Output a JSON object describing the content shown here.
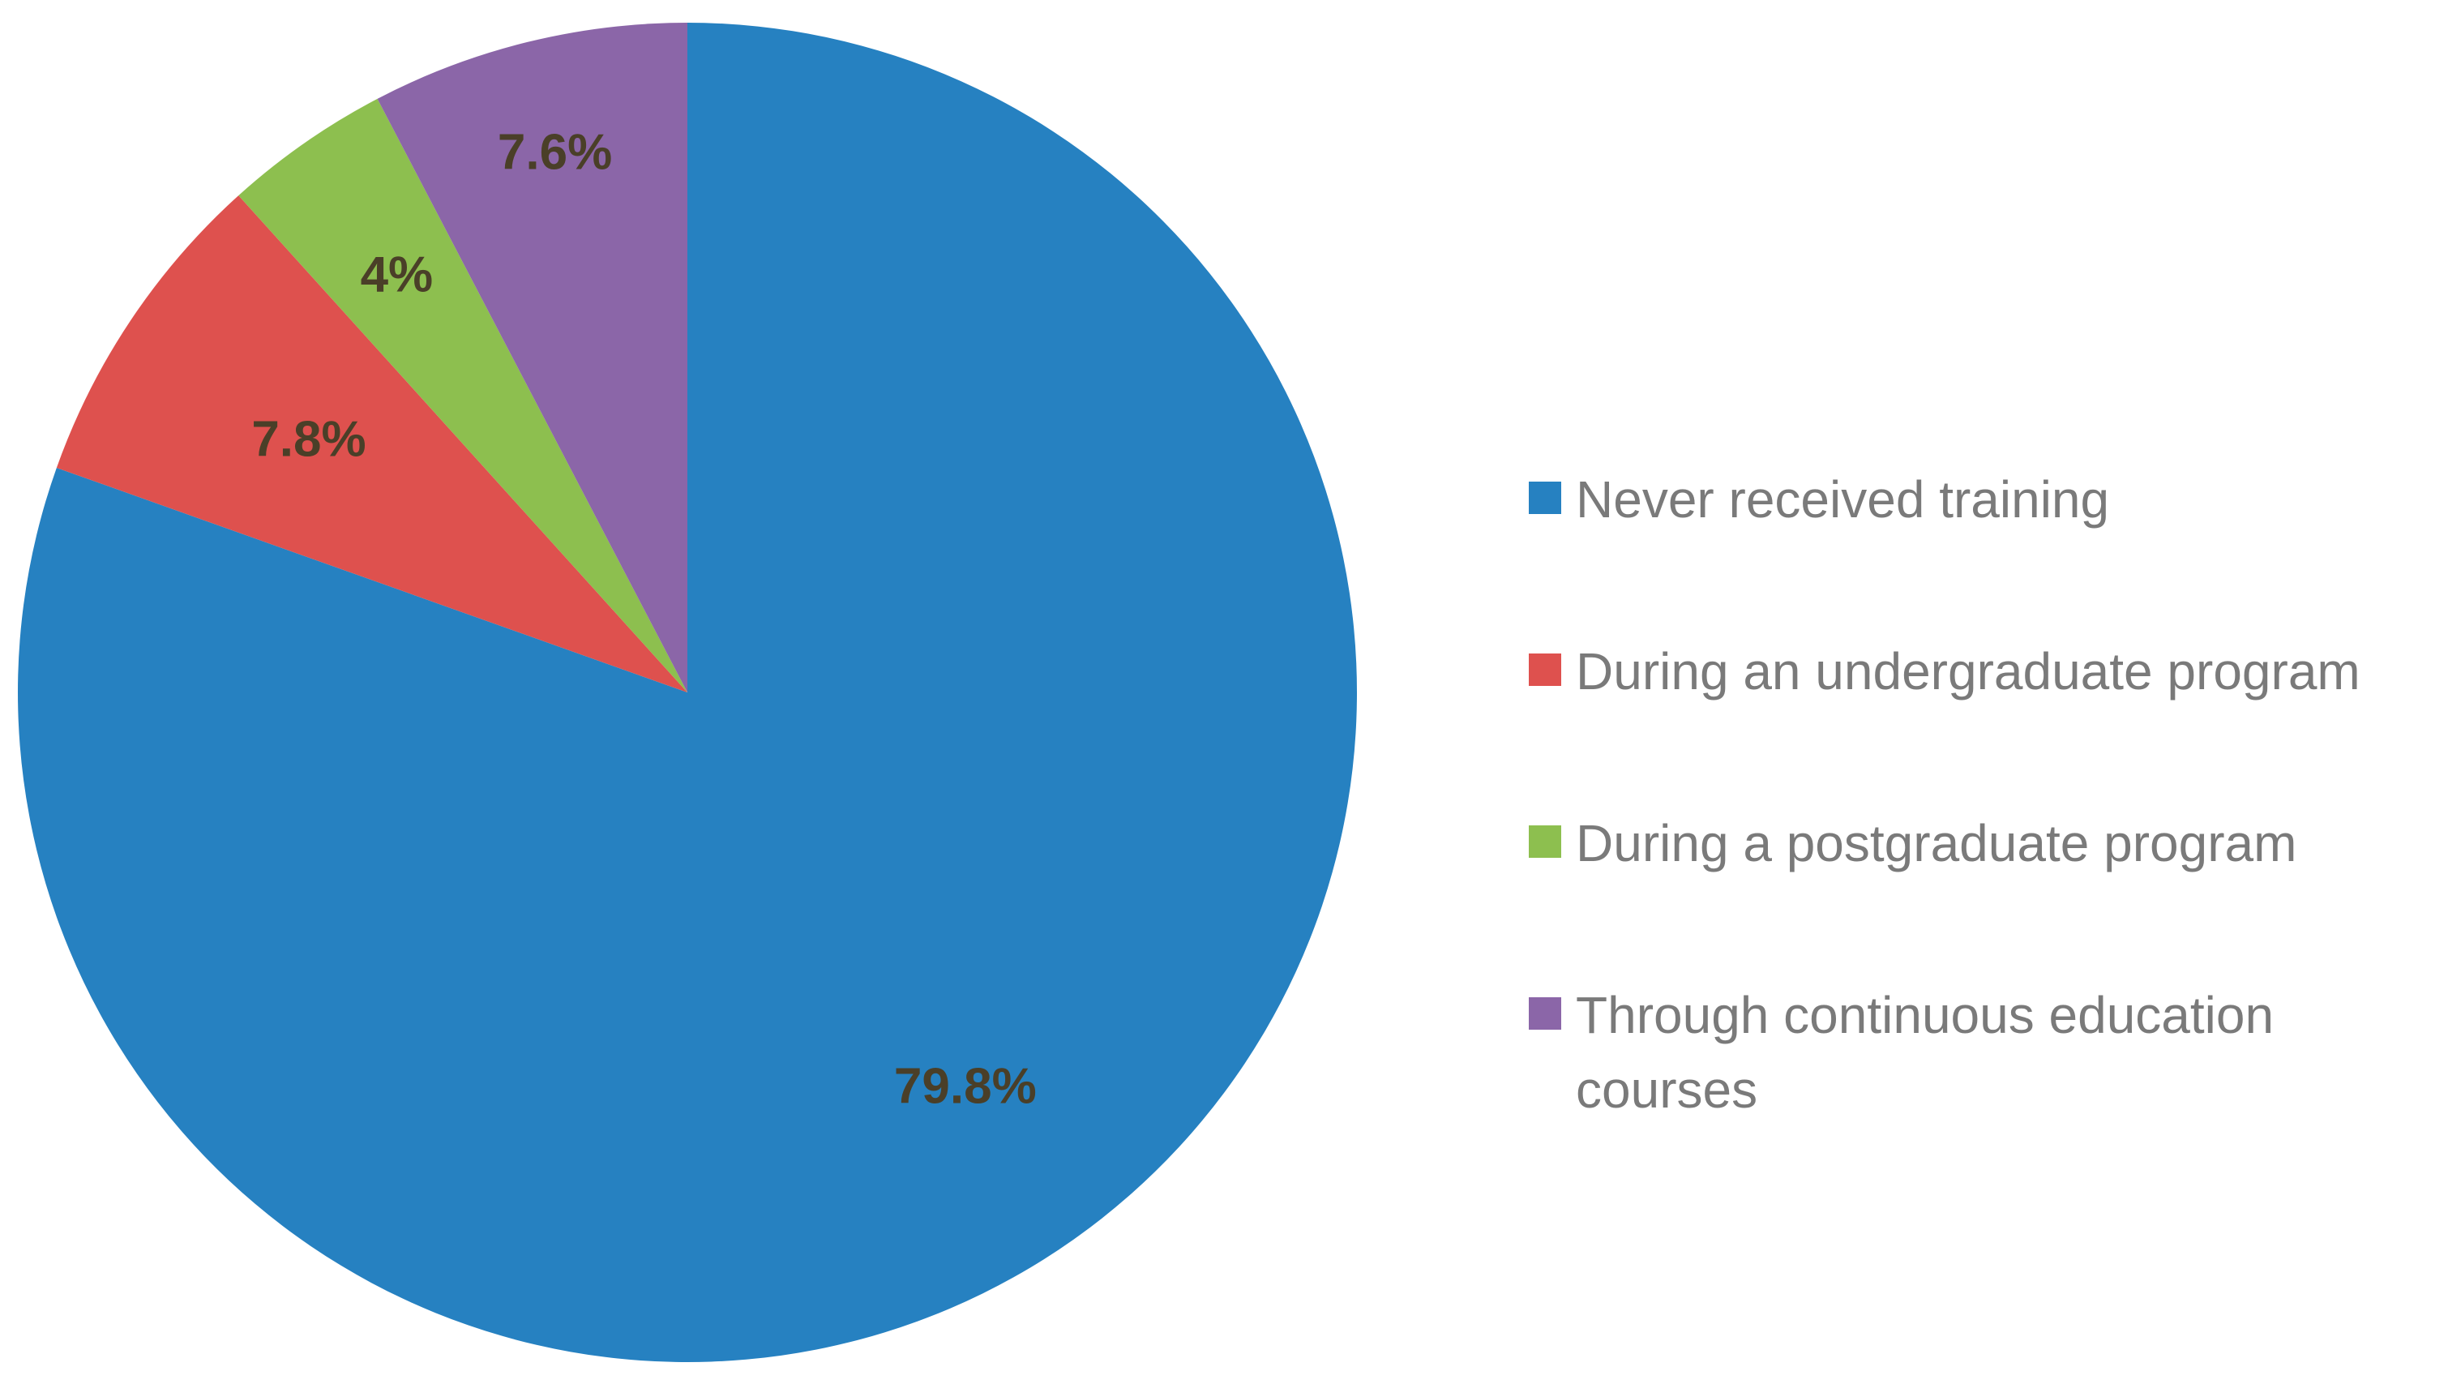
{
  "chart_data": {
    "type": "pie",
    "start_angle_deg": 0,
    "direction": "clockwise",
    "slices": [
      {
        "label": "Never received training",
        "value": 79.8,
        "display": "79.8%",
        "color": "#2681c1"
      },
      {
        "label": "During an undergraduate program",
        "value": 7.8,
        "display": "7.8%",
        "color": "#de514e"
      },
      {
        "label": "During a postgraduate program",
        "value": 4,
        "display": "4%",
        "color": "#8dbf4f"
      },
      {
        "label": "Through continuous education courses",
        "value": 7.6,
        "display": "7.6%",
        "color": "#8b66a8"
      }
    ],
    "legend_position": "right"
  }
}
